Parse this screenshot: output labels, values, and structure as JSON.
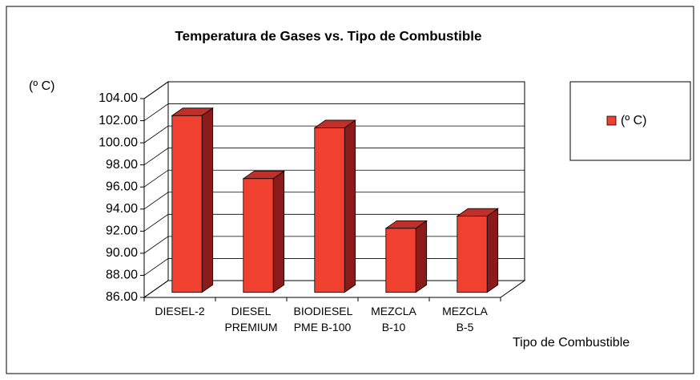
{
  "chart_data": {
    "type": "bar3d",
    "title": "Temperatura de Gases vs. Tipo de Combustible",
    "y_label": "(º C)",
    "x_label": "Tipo de Combustible",
    "categories": [
      "DIESEL-2",
      "DIESEL PREMIUM",
      "BIODIESEL PME B-100",
      "MEZCLA B-10",
      "MEZCLA B-5"
    ],
    "series": [
      {
        "name": "(º C)",
        "color": "#f04030",
        "values": [
          102.0,
          96.3,
          100.9,
          91.8,
          92.9
        ]
      }
    ],
    "ylim": [
      86,
      104
    ],
    "yticks": [
      {
        "value": 86,
        "label": "86.00"
      },
      {
        "value": 88,
        "label": "88.00"
      },
      {
        "value": 90,
        "label": "90.00"
      },
      {
        "value": 92,
        "label": "92.00"
      },
      {
        "value": 94,
        "label": "94.00"
      },
      {
        "value": 96,
        "label": "96.00"
      },
      {
        "value": 98,
        "label": "98.00"
      },
      {
        "value": 100,
        "label": "100.00"
      },
      {
        "value": 102,
        "label": "102.00"
      },
      {
        "value": 104,
        "label": "104.00"
      }
    ],
    "grid": true,
    "legend": "right"
  }
}
